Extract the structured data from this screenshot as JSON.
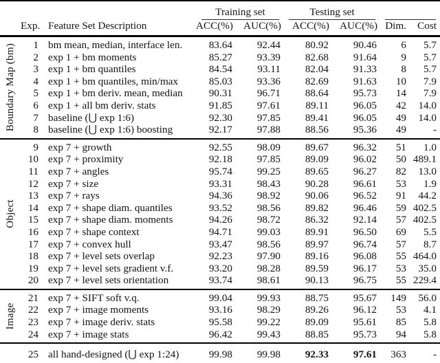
{
  "table": {
    "title_row": {
      "training_set": "Training set",
      "testing_set": "Testing set"
    },
    "columns": {
      "exp": "Exp.",
      "desc": "Feature Set Description",
      "train_acc": "ACC(%)",
      "train_auc": "AUC(%)",
      "test_acc": "ACC(%)",
      "test_auc": "AUC(%)",
      "dim": "Dim.",
      "cost": "Cost"
    },
    "groups": [
      {
        "label": "Boundary Map (bm)",
        "rows": [
          {
            "exp": "1",
            "desc": "bm mean, median, interface len.",
            "train_acc": "83.64",
            "train_auc": "92.44",
            "test_acc": "80.92",
            "test_auc": "90.46",
            "dim": "6",
            "cost": "5.7"
          },
          {
            "exp": "2",
            "desc": "exp 1 + bm moments",
            "train_acc": "85.27",
            "train_auc": "93.39",
            "test_acc": "82.68",
            "test_auc": "91.64",
            "dim": "9",
            "cost": "5.7"
          },
          {
            "exp": "3",
            "desc": "exp 1 + bm quantiles",
            "train_acc": "84.54",
            "train_auc": "93.11",
            "test_acc": "82.04",
            "test_auc": "91.33",
            "dim": "8",
            "cost": "5.7"
          },
          {
            "exp": "4",
            "desc": "exp 1 + bm quantiles, min/max",
            "train_acc": "85.03",
            "train_auc": "93.36",
            "test_acc": "82.69",
            "test_auc": "91.63",
            "dim": "10",
            "cost": "7.9"
          },
          {
            "exp": "5",
            "desc": "exp 1 + bm deriv. mean, median",
            "train_acc": "90.31",
            "train_auc": "96.71",
            "test_acc": "88.64",
            "test_auc": "95.73",
            "dim": "14",
            "cost": "7.9"
          },
          {
            "exp": "6",
            "desc": "exp 1 + all bm deriv. stats",
            "train_acc": "91.85",
            "train_auc": "97.61",
            "test_acc": "89.11",
            "test_auc": "96.05",
            "dim": "42",
            "cost": "14.0"
          },
          {
            "exp": "7",
            "desc": "baseline (⋃ exp 1:6)",
            "train_acc": "92.30",
            "train_auc": "97.85",
            "test_acc": "89.41",
            "test_auc": "96.05",
            "dim": "49",
            "cost": "14.0"
          },
          {
            "exp": "8",
            "desc": "baseline (⋃ exp 1:6) boosting",
            "train_acc": "92.17",
            "train_auc": "97.88",
            "test_acc": "88.56",
            "test_auc": "95.36",
            "dim": "49",
            "cost": "-"
          }
        ]
      },
      {
        "label": "Object",
        "rows": [
          {
            "exp": "9",
            "desc": "exp 7 + growth",
            "train_acc": "92.55",
            "train_auc": "98.09",
            "test_acc": "89.67",
            "test_auc": "96.32",
            "dim": "51",
            "cost": "1.0"
          },
          {
            "exp": "10",
            "desc": "exp 7 + proximity",
            "train_acc": "92.18",
            "train_auc": "97.85",
            "test_acc": "89.09",
            "test_auc": "96.02",
            "dim": "50",
            "cost": "489.1"
          },
          {
            "exp": "11",
            "desc": "exp 7 + angles",
            "train_acc": "95.74",
            "train_auc": "99.25",
            "test_acc": "89.65",
            "test_auc": "96.27",
            "dim": "82",
            "cost": "13.0"
          },
          {
            "exp": "12",
            "desc": "exp 7 + size",
            "train_acc": "93.31",
            "train_auc": "98.43",
            "test_acc": "90.28",
            "test_auc": "96.61",
            "dim": "53",
            "cost": "1.9"
          },
          {
            "exp": "13",
            "desc": "exp 7 + rays",
            "train_acc": "94.36",
            "train_auc": "98.92",
            "test_acc": "90.06",
            "test_auc": "96.52",
            "dim": "91",
            "cost": "44.2"
          },
          {
            "exp": "14",
            "desc": "exp 7 + shape diam. quantiles",
            "train_acc": "93.52",
            "train_auc": "98.56",
            "test_acc": "89.82",
            "test_auc": "96.46",
            "dim": "59",
            "cost": "402.5"
          },
          {
            "exp": "15",
            "desc": "exp 7 + shape diam. moments",
            "train_acc": "94.26",
            "train_auc": "98.72",
            "test_acc": "86.32",
            "test_auc": "92.14",
            "dim": "57",
            "cost": "402.5"
          },
          {
            "exp": "16",
            "desc": "exp 7 + shape context",
            "train_acc": "94.71",
            "train_auc": "99.03",
            "test_acc": "89.91",
            "test_auc": "96.50",
            "dim": "69",
            "cost": "5.5"
          },
          {
            "exp": "17",
            "desc": "exp 7 + convex hull",
            "train_acc": "93.47",
            "train_auc": "98.56",
            "test_acc": "89.97",
            "test_auc": "96.74",
            "dim": "57",
            "cost": "8.7"
          },
          {
            "exp": "18",
            "desc": "exp 7 + level sets overlap",
            "train_acc": "92.23",
            "train_auc": "97.90",
            "test_acc": "89.16",
            "test_auc": "96.08",
            "dim": "55",
            "cost": "464.0"
          },
          {
            "exp": "19",
            "desc": "exp 7 + level sets gradient v.f.",
            "train_acc": "93.20",
            "train_auc": "98.28",
            "test_acc": "89.59",
            "test_auc": "96.17",
            "dim": "53",
            "cost": "35.0"
          },
          {
            "exp": "20",
            "desc": "exp 7 + level sets orientation",
            "train_acc": "93.74",
            "train_auc": "98.61",
            "test_acc": "90.13",
            "test_auc": "96.75",
            "dim": "55",
            "cost": "229.4"
          }
        ]
      },
      {
        "label": "Image",
        "rows": [
          {
            "exp": "21",
            "desc": "exp 7 + SIFT soft v.q.",
            "train_acc": "99.04",
            "train_auc": "99.93",
            "test_acc": "88.75",
            "test_auc": "95.67",
            "dim": "149",
            "cost": "56.0"
          },
          {
            "exp": "22",
            "desc": "exp 7 + image moments",
            "train_acc": "93.16",
            "train_auc": "98.29",
            "test_acc": "89.26",
            "test_auc": "96.12",
            "dim": "53",
            "cost": "4.1"
          },
          {
            "exp": "23",
            "desc": "exp 7 + image deriv. stats",
            "train_acc": "95.58",
            "train_auc": "99.22",
            "test_acc": "89.09",
            "test_auc": "95.61",
            "dim": "85",
            "cost": "5.8"
          },
          {
            "exp": "24",
            "desc": "exp 7 + image stats",
            "train_acc": "96.42",
            "train_auc": "99.43",
            "test_acc": "88.85",
            "test_auc": "95.73",
            "dim": "94",
            "cost": "5.8"
          }
        ]
      },
      {
        "label": "",
        "rows": [
          {
            "exp": "25",
            "desc": "all hand-designed (⋃ exp 1:24)",
            "train_acc": "99.98",
            "train_auc": "99.98",
            "test_acc": "92.33",
            "test_auc": "97.61",
            "dim": "363",
            "cost": "-",
            "bold": [
              "test_acc",
              "test_auc"
            ]
          }
        ]
      }
    ]
  }
}
